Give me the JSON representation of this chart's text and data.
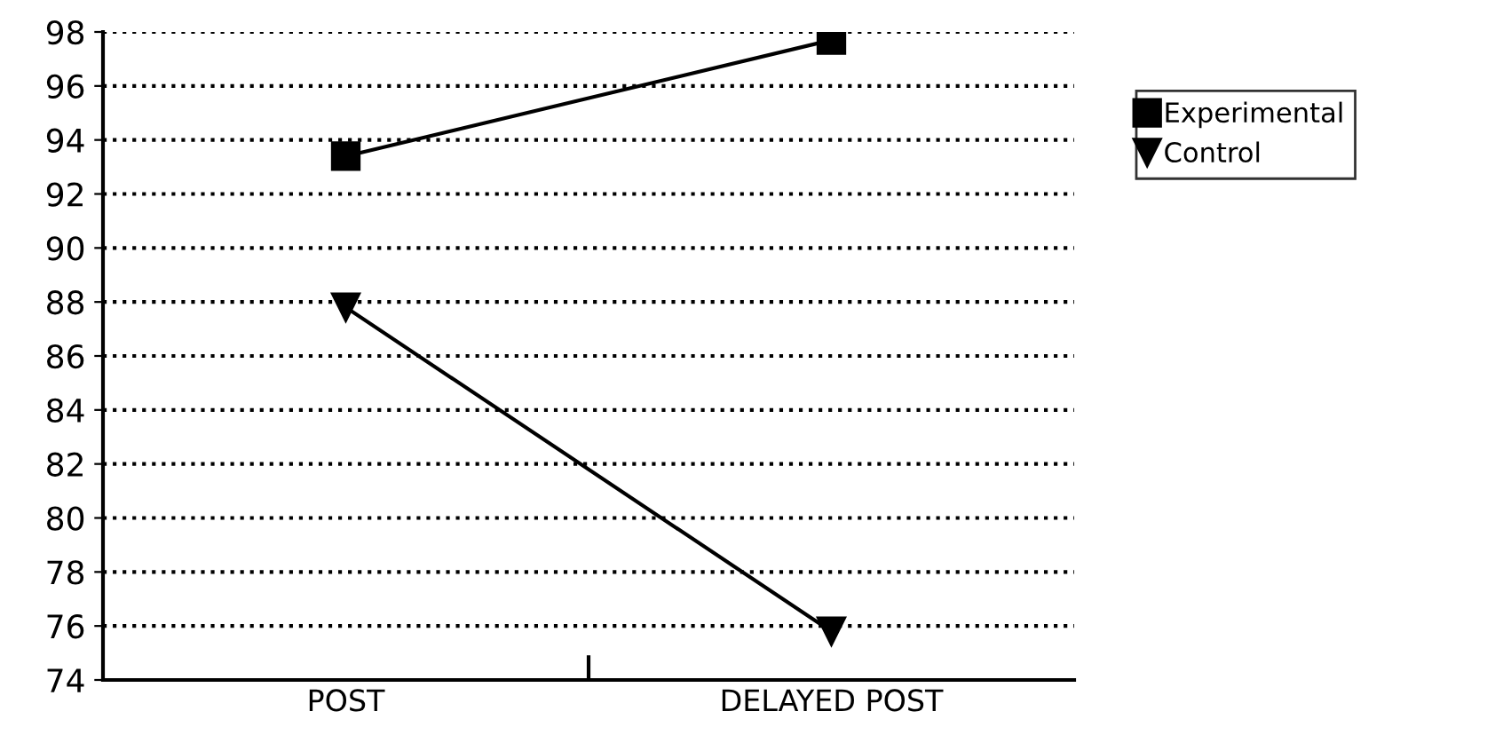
{
  "chart_data": {
    "type": "line",
    "categories": [
      "POST",
      "DELAYED POST"
    ],
    "series": [
      {
        "name": "Experimental",
        "color": "#000000",
        "marker": "square",
        "values": [
          93.4,
          97.7
        ]
      },
      {
        "name": "Control",
        "color": "#000000",
        "marker": "triangle",
        "values": [
          87.8,
          75.8
        ]
      }
    ],
    "ylim": [
      74,
      98
    ],
    "yticks": [
      74,
      76,
      78,
      80,
      82,
      84,
      86,
      88,
      90,
      92,
      94,
      96,
      98
    ],
    "grid": "y",
    "legend": "top right",
    "line_style": "solid"
  }
}
